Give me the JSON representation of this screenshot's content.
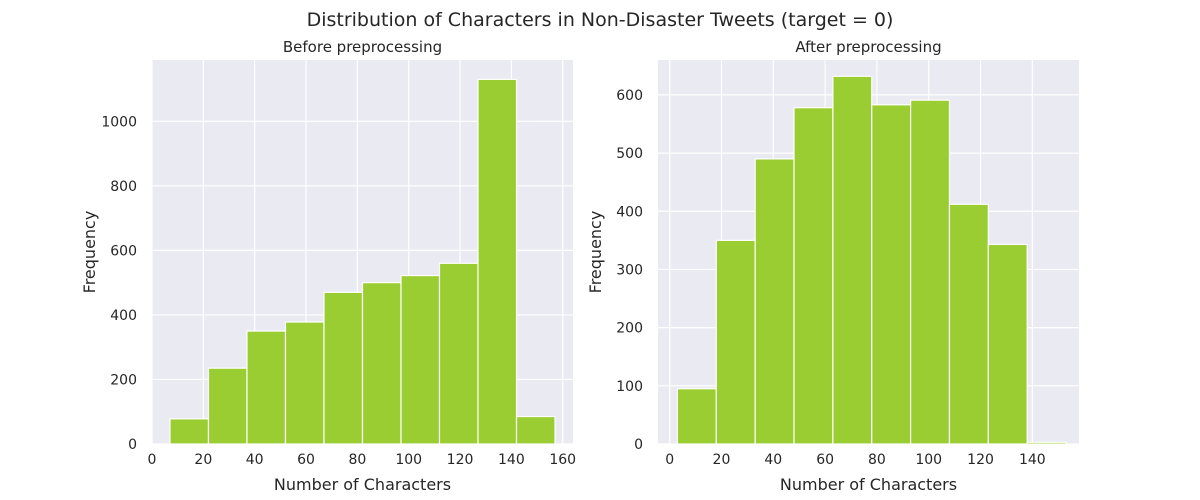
{
  "figure": {
    "suptitle": "Distribution of Characters in Non-Disaster Tweets (target = 0)",
    "background_color": "#ffffff",
    "plot_background_color": "#eaeaf2",
    "grid_color": "#ffffff",
    "bar_color": "#9acd32",
    "bar_edge_color": "#ffffff"
  },
  "chart_data": [
    {
      "type": "bar",
      "title": "Before preprocessing",
      "xlabel": "Number of Characters",
      "ylabel": "Frequency",
      "xlim": [
        0,
        164
      ],
      "ylim": [
        0,
        1190
      ],
      "xticks": [
        0,
        20,
        40,
        60,
        80,
        100,
        120,
        140,
        160
      ],
      "yticks": [
        0,
        200,
        400,
        600,
        800,
        1000
      ],
      "grid": true,
      "bins": [
        {
          "x0": 7,
          "x1": 22,
          "value": 78
        },
        {
          "x0": 22,
          "x1": 37,
          "value": 235
        },
        {
          "x0": 37,
          "x1": 52,
          "value": 350
        },
        {
          "x0": 52,
          "x1": 67,
          "value": 378
        },
        {
          "x0": 67,
          "x1": 82,
          "value": 470
        },
        {
          "x0": 82,
          "x1": 97,
          "value": 500
        },
        {
          "x0": 97,
          "x1": 112,
          "value": 522
        },
        {
          "x0": 112,
          "x1": 127,
          "value": 560
        },
        {
          "x0": 127,
          "x1": 142,
          "value": 1130
        },
        {
          "x0": 142,
          "x1": 157,
          "value": 85
        }
      ]
    },
    {
      "type": "bar",
      "title": "After preprocessing",
      "xlabel": "Number of Characters",
      "ylabel": "Frequency",
      "xlim": [
        -4.5,
        158
      ],
      "ylim": [
        0,
        660
      ],
      "xticks": [
        0,
        20,
        40,
        60,
        80,
        100,
        120,
        140
      ],
      "yticks": [
        0,
        100,
        200,
        300,
        400,
        500,
        600
      ],
      "grid": true,
      "bins": [
        {
          "x0": 3,
          "x1": 18,
          "value": 95
        },
        {
          "x0": 18,
          "x1": 33,
          "value": 350
        },
        {
          "x0": 33,
          "x1": 48,
          "value": 490
        },
        {
          "x0": 48,
          "x1": 63,
          "value": 578
        },
        {
          "x0": 63,
          "x1": 78,
          "value": 632
        },
        {
          "x0": 78,
          "x1": 93,
          "value": 583
        },
        {
          "x0": 93,
          "x1": 108,
          "value": 591
        },
        {
          "x0": 108,
          "x1": 123,
          "value": 412
        },
        {
          "x0": 123,
          "x1": 138,
          "value": 343
        },
        {
          "x0": 138,
          "x1": 153,
          "value": 3
        }
      ]
    }
  ]
}
